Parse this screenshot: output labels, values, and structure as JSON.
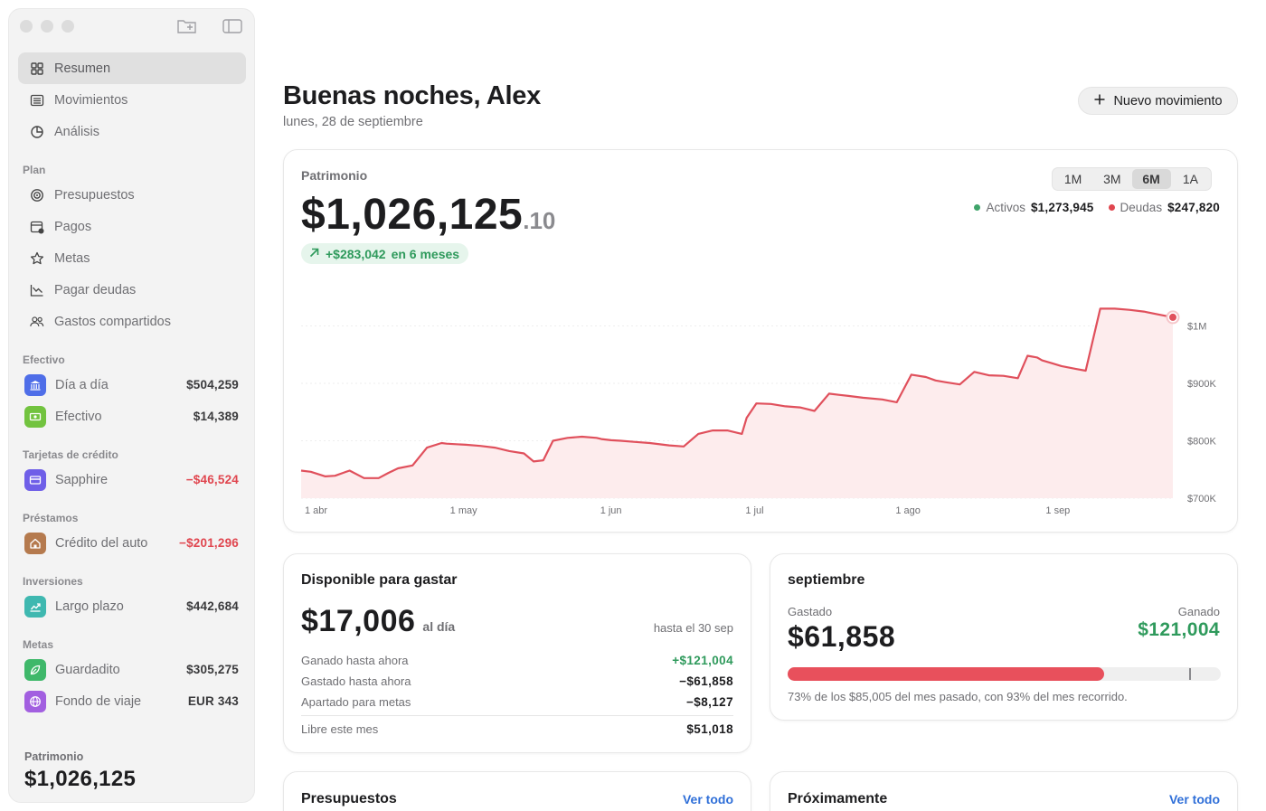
{
  "sidebar": {
    "nav": [
      {
        "label": "Resumen",
        "icon": "grid-icon",
        "active": true
      },
      {
        "label": "Movimientos",
        "icon": "list-icon"
      },
      {
        "label": "Análisis",
        "icon": "pie-chart-icon"
      }
    ],
    "plan_label": "Plan",
    "plan": [
      {
        "label": "Presupuestos",
        "icon": "target-icon"
      },
      {
        "label": "Pagos",
        "icon": "calendar-icon"
      },
      {
        "label": "Metas",
        "icon": "star-icon"
      },
      {
        "label": "Pagar deudas",
        "icon": "trend-down-icon"
      },
      {
        "label": "Gastos compartidos",
        "icon": "people-icon"
      }
    ],
    "groups": [
      {
        "label": "Efectivo",
        "accounts": [
          {
            "name": "Día a día",
            "amount": "$504,259",
            "icon": "bank-icon",
            "color": "#4f6ee8"
          },
          {
            "name": "Efectivo",
            "amount": "$14,389",
            "icon": "cash-icon",
            "color": "#72c33f"
          }
        ]
      },
      {
        "label": "Tarjetas de crédito",
        "accounts": [
          {
            "name": "Sapphire",
            "amount": "−$46,524",
            "icon": "card-icon",
            "color": "#6f5fe8",
            "negative": true
          }
        ]
      },
      {
        "label": "Préstamos",
        "accounts": [
          {
            "name": "Crédito del auto",
            "amount": "−$201,296",
            "icon": "house-icon",
            "color": "#b57a4e",
            "negative": true
          }
        ]
      },
      {
        "label": "Inversiones",
        "accounts": [
          {
            "name": "Largo plazo",
            "amount": "$442,684",
            "icon": "growth-icon",
            "color": "#3fb8b0"
          }
        ]
      },
      {
        "label": "Metas",
        "accounts": [
          {
            "name": "Guardadito",
            "amount": "$305,275",
            "icon": "leaf-icon",
            "color": "#3fb86a"
          },
          {
            "name": "Fondo de viaje",
            "amount": "EUR 343",
            "icon": "globe-icon",
            "color": "#a25fe0"
          }
        ]
      }
    ],
    "footer_label": "Patrimonio",
    "footer_value": "$1,026,125"
  },
  "header": {
    "greeting": "Buenas noches, Alex",
    "date": "lunes, 28 de septiembre",
    "new_button": "Nuevo movimiento"
  },
  "networth": {
    "label": "Patrimonio",
    "value_main": "$1,026,125",
    "value_cents": ".10",
    "change": "+$283,042",
    "change_period": "en 6 meses",
    "ranges": [
      "1M",
      "3M",
      "6M",
      "1A"
    ],
    "selected_range": "6M",
    "assets_label": "Activos",
    "assets_value": "$1,273,945",
    "debts_label": "Deudas",
    "debts_value": "$247,820",
    "colors": {
      "line": "#e0505c",
      "fill": "#fdeced",
      "assets": "#3fa46a",
      "debts": "#e0464f"
    }
  },
  "chart_data": {
    "type": "area",
    "x_ticks": [
      "1 abr",
      "1 may",
      "1 jun",
      "1 jul",
      "1 ago",
      "1 sep"
    ],
    "y_ticks": [
      "$1M",
      "$900K",
      "$800K",
      "$700K"
    ],
    "y_tick_values": [
      1000000,
      900000,
      800000,
      700000
    ],
    "ylim": [
      700000,
      1070000
    ],
    "x_days": [
      0,
      2,
      5,
      7,
      9,
      10,
      13,
      16,
      18,
      20,
      23,
      26,
      29,
      30,
      32,
      34,
      37,
      40,
      43,
      46,
      48,
      50,
      52,
      55,
      58,
      61,
      62,
      64,
      66,
      69,
      72,
      76,
      79,
      82,
      85,
      88,
      91,
      92,
      94,
      97,
      100,
      103,
      106,
      109,
      111,
      113,
      116,
      120,
      123,
      126,
      129,
      131,
      133,
      136,
      139,
      142,
      145,
      148,
      150,
      152,
      153,
      155,
      157,
      160,
      162,
      165,
      168,
      171,
      174,
      177,
      180
    ],
    "values": [
      748000,
      746000,
      738000,
      739000,
      745000,
      748000,
      735000,
      735000,
      744000,
      752000,
      757000,
      788000,
      796000,
      795000,
      794000,
      793000,
      791000,
      788000,
      782000,
      778000,
      764000,
      766000,
      800000,
      805000,
      807000,
      805000,
      803000,
      801000,
      800000,
      798000,
      796000,
      792000,
      790000,
      812000,
      818000,
      818000,
      812000,
      840000,
      865000,
      864000,
      860000,
      858000,
      852000,
      882000,
      880000,
      878000,
      875000,
      872000,
      867000,
      915000,
      911000,
      905000,
      902000,
      898000,
      920000,
      914000,
      913000,
      909000,
      948000,
      945000,
      940000,
      935000,
      930000,
      925000,
      922000,
      1030000,
      1030000,
      1028000,
      1025000,
      1020000,
      1015000
    ],
    "last_point": {
      "x_day": 180,
      "value": 1015000
    },
    "grid": true,
    "legend": "top-right"
  },
  "available": {
    "title": "Disponible para gastar",
    "value": "$17,006",
    "per": "al día",
    "until": "hasta el 30 sep",
    "rows": [
      {
        "label": "Ganado hasta ahora",
        "value": "+$121,004",
        "positive": true
      },
      {
        "label": "Gastado hasta ahora",
        "value": "−$61,858"
      },
      {
        "label": "Apartado para metas",
        "value": "−$8,127"
      }
    ],
    "free_label": "Libre este mes",
    "free_value": "$51,018"
  },
  "month": {
    "title": "septiembre",
    "spent_label": "Gastado",
    "spent_value": "$61,858",
    "earned_label": "Ganado",
    "earned_value": "$121,004",
    "progress_fraction": 0.73,
    "marker_fraction": 0.93,
    "note": "73% de los $85,005 del mes pasado, con 93% del mes recorrido."
  },
  "budgets": {
    "title": "Presupuestos",
    "link": "Ver todo"
  },
  "upcoming": {
    "title": "Próximamente",
    "link": "Ver todo"
  }
}
